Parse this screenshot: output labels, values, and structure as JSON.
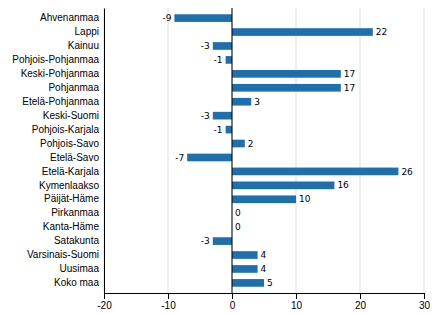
{
  "chart_data": {
    "type": "bar",
    "orientation": "horizontal",
    "categories": [
      "Koko maa",
      "Uusimaa",
      "Varsinais-Suomi",
      "Satakunta",
      "Kanta-Häme",
      "Pirkanmaa",
      "Päijät-Häme",
      "Kymenlaakso",
      "Etelä-Karjala",
      "Etelä-Savo",
      "Pohjois-Savo",
      "Pohjois-Karjala",
      "Keski-Suomi",
      "Etelä-Pohjanmaa",
      "Pohjanmaa",
      "Keski-Pohjanmaa",
      "Pohjois-Pohjanmaa",
      "Kainuu",
      "Lappi",
      "Ahvenanmaa"
    ],
    "values": [
      5,
      4,
      4,
      -3,
      0,
      0,
      10,
      16,
      26,
      -7,
      2,
      -1,
      -3,
      3,
      17,
      17,
      -1,
      -3,
      22,
      -9
    ],
    "color": "#1f6fad",
    "xlim": [
      -20,
      30
    ],
    "xticks": [
      -20,
      -10,
      0,
      10,
      20,
      30
    ],
    "grid": true,
    "data_labels": true
  }
}
